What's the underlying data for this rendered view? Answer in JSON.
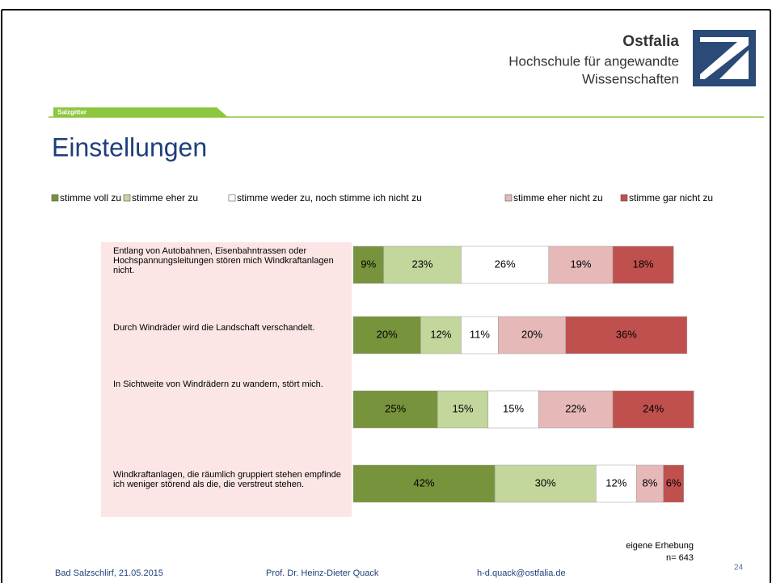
{
  "header": {
    "logo_name": "Ostfalia",
    "logo_line1": "Hochschule für angewandte",
    "logo_line2": "Wissenschaften",
    "campus": "Salzgitter"
  },
  "chart_data": {
    "type": "bar",
    "orientation": "horizontal",
    "stacked": true,
    "title": "Einstellungen",
    "categories": [
      "Entlang von Autobahnen, Eisenbahntrassen oder Hochspannungsleitungen stören mich Windkraftanlagen nicht.",
      "Durch Windräder wird die Landschaft verschandelt.",
      "In Sichtweite von Windrädern zu wandern, stört mich.",
      "Windkraftanlagen, die räumlich gruppiert stehen empfinde ich weniger störend als die, die verstreut stehen."
    ],
    "xlim": [
      0,
      100
    ],
    "legend": "top",
    "series": [
      {
        "name": "stimme voll zu",
        "color": "#77933c",
        "values": [
          9,
          20,
          25,
          42
        ],
        "value_labels": [
          "9%",
          "20%",
          "25%",
          "42%"
        ]
      },
      {
        "name": "stimme eher zu",
        "color": "#c3d69b",
        "values": [
          23,
          12,
          15,
          30
        ],
        "value_labels": [
          "23%",
          "12%",
          "15%",
          "30%"
        ]
      },
      {
        "name": "stimme weder zu, noch stimme ich nicht zu",
        "color": "#ffffff",
        "values": [
          26,
          11,
          15,
          12
        ],
        "value_labels": [
          "26%",
          "11%",
          "15%",
          "12%"
        ]
      },
      {
        "name": "stimme eher nicht zu",
        "color": "#e6b9b8",
        "values": [
          19,
          20,
          22,
          8
        ],
        "value_labels": [
          "19%",
          "20%",
          "22%",
          "8%"
        ]
      },
      {
        "name": "stimme gar nicht zu",
        "color": "#c0504d",
        "values": [
          18,
          36,
          24,
          6
        ],
        "value_labels": [
          "18%",
          "36%",
          "24%",
          "6%"
        ]
      }
    ]
  },
  "footer": {
    "source": "eigene Erhebung",
    "sample": "n= 643",
    "location_date": "Bad Salzschlirf, 21.05.2015",
    "author": "Prof. Dr. Heinz-Dieter Quack",
    "email": "h-d.quack@ostfalia.de",
    "page": "24"
  }
}
